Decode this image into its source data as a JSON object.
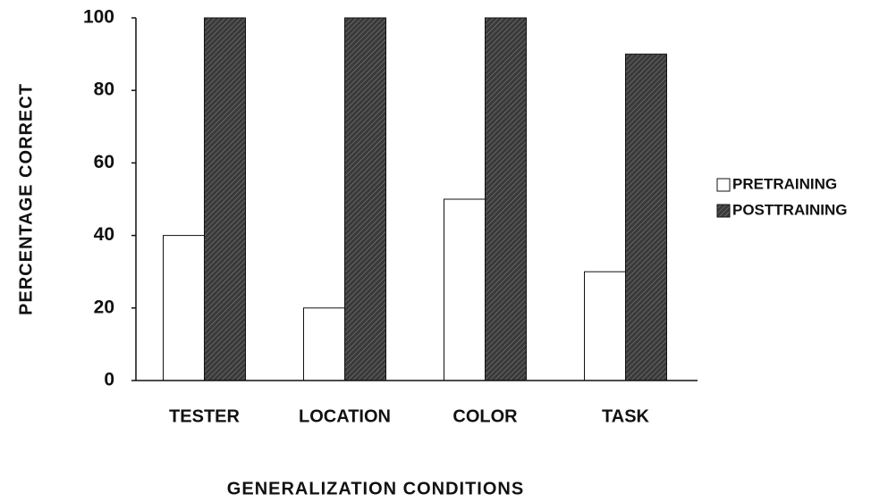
{
  "chart_data": {
    "type": "bar",
    "categories": [
      "TESTER",
      "LOCATION",
      "COLOR",
      "TASK"
    ],
    "series": [
      {
        "name": "PRETRAINING",
        "color": "#ffffff",
        "values": [
          40,
          20,
          50,
          30
        ]
      },
      {
        "name": "POSTTRAINING",
        "color": "#3a3a3a",
        "values": [
          100,
          100,
          100,
          90
        ]
      }
    ],
    "xlabel": "GENERALIZATION  CONDITIONS",
    "ylabel": "PERCENTAGE  CORRECT",
    "ylim": [
      0,
      100
    ],
    "yticks": [
      0,
      20,
      40,
      60,
      80,
      100
    ],
    "grid": false,
    "legend": "right"
  }
}
